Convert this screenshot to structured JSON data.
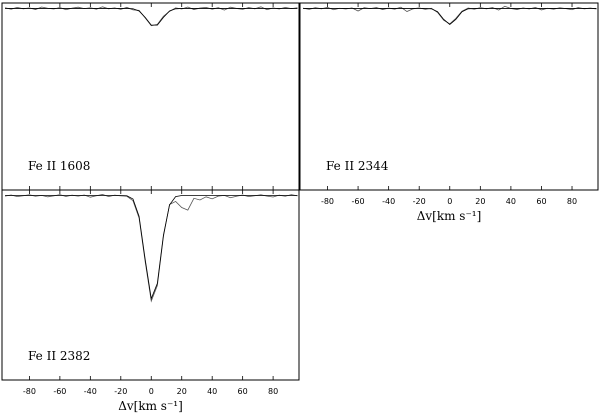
{
  "chart_data": [
    {
      "type": "line",
      "title": "Fe II 1608",
      "tick_labels": false,
      "x": [
        -96,
        -92,
        -88,
        -84,
        -80,
        -76,
        -72,
        -68,
        -64,
        -60,
        -56,
        -52,
        -48,
        -44,
        -40,
        -36,
        -32,
        -28,
        -24,
        -20,
        -16,
        -12,
        -8,
        -4,
        0,
        4,
        8,
        12,
        16,
        20,
        24,
        28,
        32,
        36,
        40,
        44,
        48,
        52,
        56,
        60,
        64,
        68,
        72,
        76,
        80,
        84,
        88,
        92,
        96
      ],
      "series": [
        {
          "color": "#555555",
          "values": [
            1.004,
            0.996,
            1.006,
            0.998,
            1.003,
            0.994,
            1.008,
            1.001,
            0.997,
            1.005,
            0.993,
            1.002,
            1.007,
            0.999,
            1.004,
            0.996,
            1.009,
            0.998,
            1.003,
            0.995,
            1.006,
            0.992,
            0.989,
            0.948,
            0.905,
            0.912,
            0.957,
            0.984,
            1.003,
            0.997,
            1.008,
            0.994,
            1.002,
            1.006,
            0.996,
            1.004,
            0.991,
            1.007,
            1.0,
            0.995,
            1.005,
            0.998,
            1.009,
            0.993,
            1.003,
            0.997,
            1.006,
            0.999,
            1.004
          ]
        },
        {
          "color": "#000000",
          "values": [
            1,
            1,
            1,
            1,
            1,
            1,
            1,
            1,
            1,
            1,
            1,
            1,
            1,
            1,
            1,
            1,
            1,
            1,
            1,
            1,
            1,
            0.998,
            0.986,
            0.951,
            0.908,
            0.908,
            0.951,
            0.986,
            0.998,
            1,
            1,
            1,
            1,
            1,
            1,
            1,
            1,
            1,
            1,
            1,
            1,
            1,
            1,
            1,
            1,
            1,
            1,
            1,
            1
          ]
        }
      ],
      "xlim": [
        -98,
        97
      ],
      "ylim": [
        0,
        1.03
      ],
      "xticks": [
        -80,
        -60,
        -40,
        -20,
        0,
        20,
        40,
        60,
        80
      ]
    },
    {
      "type": "line",
      "title": "Fe II 2344",
      "tick_labels": true,
      "x_label": "Δv[km s⁻¹]",
      "x": [
        -96,
        -92,
        -88,
        -84,
        -80,
        -76,
        -72,
        -68,
        -64,
        -60,
        -56,
        -52,
        -48,
        -44,
        -40,
        -36,
        -32,
        -28,
        -24,
        -20,
        -16,
        -12,
        -8,
        -4,
        0,
        4,
        8,
        12,
        16,
        20,
        24,
        28,
        32,
        36,
        40,
        44,
        48,
        52,
        56,
        60,
        64,
        68,
        72,
        76,
        80,
        84,
        88,
        92,
        96
      ],
      "series": [
        {
          "color": "#555555",
          "values": [
            1.002,
            0.995,
            1.004,
            0.998,
            1.006,
            0.993,
            1.001,
            0.997,
            1.003,
            0.986,
            1.004,
            0.999,
            1.005,
            0.994,
            1.002,
            0.996,
            1.007,
            0.983,
            0.998,
            1.003,
            0.995,
            1.001,
            0.978,
            0.935,
            0.915,
            0.946,
            0.985,
            1.002,
            0.996,
            1.004,
            0.998,
            1.005,
            0.991,
            1.012,
            1.0,
            0.994,
            1.003,
            0.997,
            1.006,
            0.992,
            1.001,
            0.996,
            1.004,
            0.999,
            0.993,
            1.005,
            0.998,
            1.002,
            0.997
          ]
        },
        {
          "color": "#000000",
          "values": [
            1,
            1,
            1,
            1,
            1,
            1,
            1,
            1,
            1,
            1,
            1,
            1,
            1,
            1,
            1,
            1,
            1,
            1,
            1,
            1,
            1,
            0.998,
            0.982,
            0.94,
            0.912,
            0.94,
            0.982,
            0.998,
            1,
            1,
            1,
            1,
            1,
            1,
            1,
            1,
            1,
            1,
            1,
            1,
            1,
            1,
            1,
            1,
            1,
            1,
            1,
            1,
            1
          ]
        }
      ],
      "xlim": [
        -98,
        97
      ],
      "ylim": [
        0,
        1.03
      ],
      "xticks": [
        -80,
        -60,
        -40,
        -20,
        0,
        20,
        40,
        60,
        80
      ]
    },
    {
      "type": "line",
      "title": "Fe II 2382",
      "tick_labels": true,
      "x_label": "Δv[km s⁻¹]",
      "x": [
        -96,
        -92,
        -88,
        -84,
        -80,
        -76,
        -72,
        -68,
        -64,
        -60,
        -56,
        -52,
        -48,
        -44,
        -40,
        -36,
        -32,
        -28,
        -24,
        -20,
        -16,
        -12,
        -8,
        -4,
        0,
        4,
        8,
        12,
        16,
        20,
        24,
        28,
        32,
        36,
        40,
        44,
        48,
        52,
        56,
        60,
        64,
        68,
        72,
        76,
        80,
        84,
        88,
        92,
        96
      ],
      "series": [
        {
          "color": "#555555",
          "values": [
            0.997,
            1.003,
            0.994,
            0.999,
            1.004,
            0.996,
            1.001,
            0.993,
            0.998,
            1.005,
            0.995,
            1.002,
            0.997,
            1.003,
            0.991,
            0.999,
            1.006,
            0.994,
            1.002,
            0.998,
            0.996,
            0.972,
            0.878,
            0.642,
            0.428,
            0.512,
            0.779,
            0.951,
            0.968,
            0.935,
            0.921,
            0.985,
            0.976,
            0.993,
            0.982,
            0.997,
            1.001,
            0.988,
            0.996,
            1.003,
            0.994,
            0.999,
            1.004,
            0.997,
            0.992,
            1.002,
            0.996,
            1.005,
            0.998
          ]
        },
        {
          "color": "#000000",
          "values": [
            1,
            1,
            1,
            1,
            1,
            1,
            1,
            1,
            1,
            1,
            1,
            1,
            1,
            1,
            1,
            1,
            1,
            1,
            1,
            1,
            0.999,
            0.981,
            0.887,
            0.654,
            0.441,
            0.524,
            0.786,
            0.949,
            0.994,
            1,
            1,
            1,
            1,
            1,
            1,
            1,
            1,
            1,
            1,
            1,
            1,
            1,
            1,
            1,
            1,
            1,
            1,
            1,
            1
          ]
        }
      ],
      "xlim": [
        -98,
        97
      ],
      "ylim": [
        0,
        1.03
      ],
      "xticks": [
        -80,
        -60,
        -40,
        -20,
        0,
        20,
        40,
        60,
        80
      ]
    }
  ]
}
